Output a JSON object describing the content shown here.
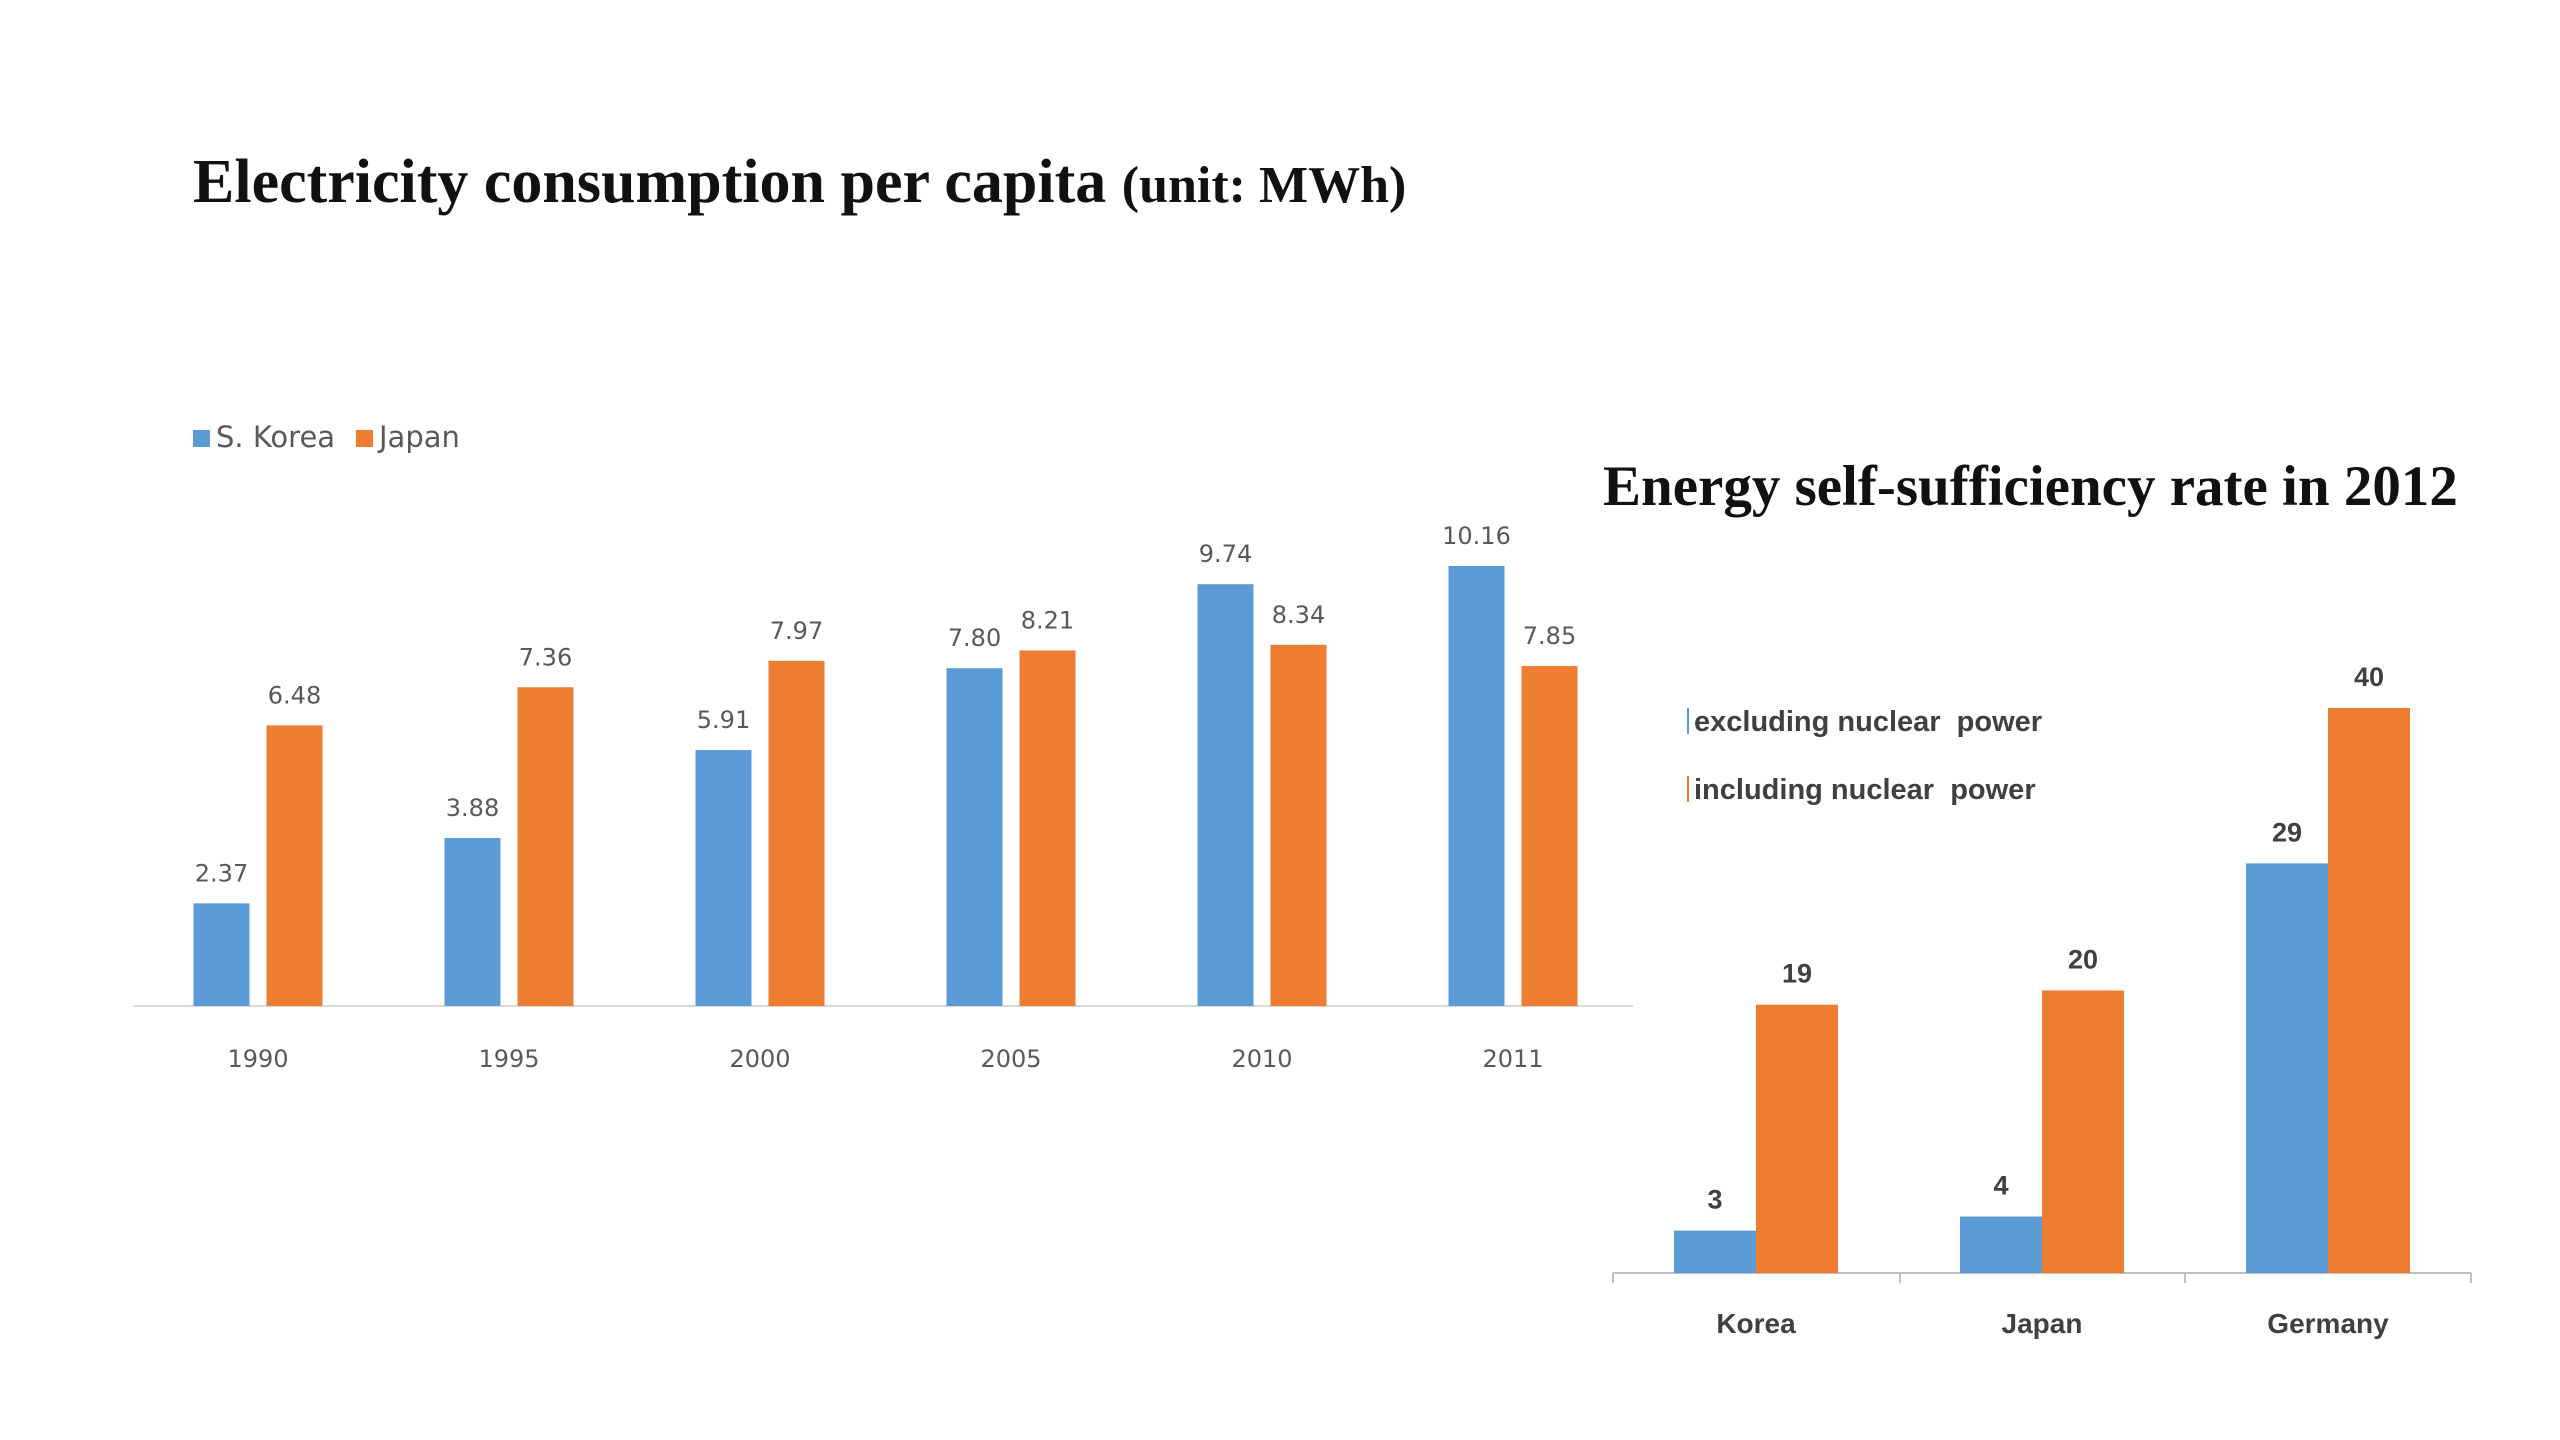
{
  "colors": {
    "blue": "#5b9bd5",
    "orange": "#ed7d31",
    "axis": "#d9d9d9"
  },
  "chart_data": [
    {
      "type": "bar",
      "title": "Electricity consumption per capita",
      "title_unit": "(unit: MWh)",
      "categories": [
        "1990",
        "1995",
        "2000",
        "2005",
        "2010",
        "2011"
      ],
      "series": [
        {
          "name": "S. Korea",
          "values": [
            2.37,
            3.88,
            5.91,
            7.8,
            9.74,
            10.16
          ],
          "labels": [
            "2.37",
            "3.88",
            "5.91",
            "7.80",
            "9.74",
            "10.16"
          ]
        },
        {
          "name": "Japan",
          "values": [
            6.48,
            7.36,
            7.97,
            8.21,
            8.34,
            7.85
          ],
          "labels": [
            "6.48",
            "7.36",
            "7.97",
            "8.21",
            "8.34",
            "7.85"
          ]
        }
      ],
      "ylim": [
        0,
        10.16
      ],
      "legend": "top-left",
      "grid": false
    },
    {
      "type": "bar",
      "title": "Energy self-sufficiency rate in 2012",
      "categories": [
        "Korea",
        "Japan",
        "Germany"
      ],
      "series": [
        {
          "name": "excluding nuclear  power",
          "values": [
            3,
            4,
            29
          ]
        },
        {
          "name": "including nuclear  power",
          "values": [
            19,
            20,
            40
          ]
        }
      ],
      "ylim": [
        0,
        40
      ],
      "legend": "top-left",
      "grid": false
    }
  ]
}
